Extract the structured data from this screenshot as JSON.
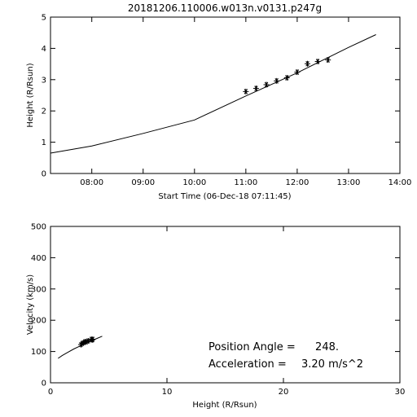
{
  "page": {
    "title": "20181206.110006.w013n.v0131.p247g"
  },
  "chart_data": [
    {
      "type": "scatter",
      "xlabel": "Start Time (06-Dec-18 07:11:45)",
      "ylabel": "Height (R/Rsun)",
      "xlim": [
        "07:11:45",
        "14:00"
      ],
      "ylim": [
        0,
        5
      ],
      "x_ticks": [
        "08:00",
        "09:00",
        "10:00",
        "11:00",
        "12:00",
        "13:00",
        "14:00"
      ],
      "y_ticks": [
        "0",
        "1",
        "2",
        "3",
        "4",
        "5"
      ],
      "series": [
        {
          "role": "fit-line",
          "x": [
            "07:11:45",
            "08:00",
            "09:00",
            "10:00",
            "11:00",
            "12:00",
            "13:00",
            "13:32"
          ],
          "values": [
            0.65,
            0.88,
            1.28,
            1.71,
            2.48,
            3.22,
            4.03,
            4.44
          ]
        },
        {
          "role": "observations",
          "marker": "asterisk",
          "x": [
            "11:00",
            "11:12",
            "11:24",
            "11:36",
            "11:48",
            "12:00",
            "12:12",
            "12:24",
            "12:36"
          ],
          "values": [
            2.62,
            2.72,
            2.84,
            2.96,
            3.06,
            3.24,
            3.51,
            3.58,
            3.63
          ]
        }
      ]
    },
    {
      "type": "scatter",
      "xlabel": "Height (R/Rsun)",
      "ylabel": "Velocity (km/s)",
      "xlim": [
        0,
        30
      ],
      "ylim": [
        0,
        500
      ],
      "x_ticks": [
        "0",
        "10",
        "20",
        "30"
      ],
      "y_ticks": [
        "0",
        "100",
        "200",
        "300",
        "400",
        "500"
      ],
      "series": [
        {
          "role": "fit-line",
          "x": [
            0.65,
            1.0,
            1.5,
            2.0,
            2.5,
            3.0,
            3.5,
            4.0,
            4.44
          ],
          "values": [
            78,
            87,
            98,
            108,
            117,
            126,
            134,
            142,
            149
          ]
        },
        {
          "role": "observations",
          "marker": "asterisk",
          "x": [
            2.62,
            2.72,
            2.84,
            2.96,
            3.06,
            3.24,
            3.51,
            3.58,
            3.63
          ],
          "values": [
            122,
            126,
            128,
            131,
            131,
            134,
            139,
            137,
            139
          ]
        }
      ],
      "annotations": {
        "pa_label": "Position Angle =",
        "pa_value": "248.",
        "acc_label": "Acceleration =",
        "acc_value": "3.20  m/s^2"
      }
    }
  ]
}
